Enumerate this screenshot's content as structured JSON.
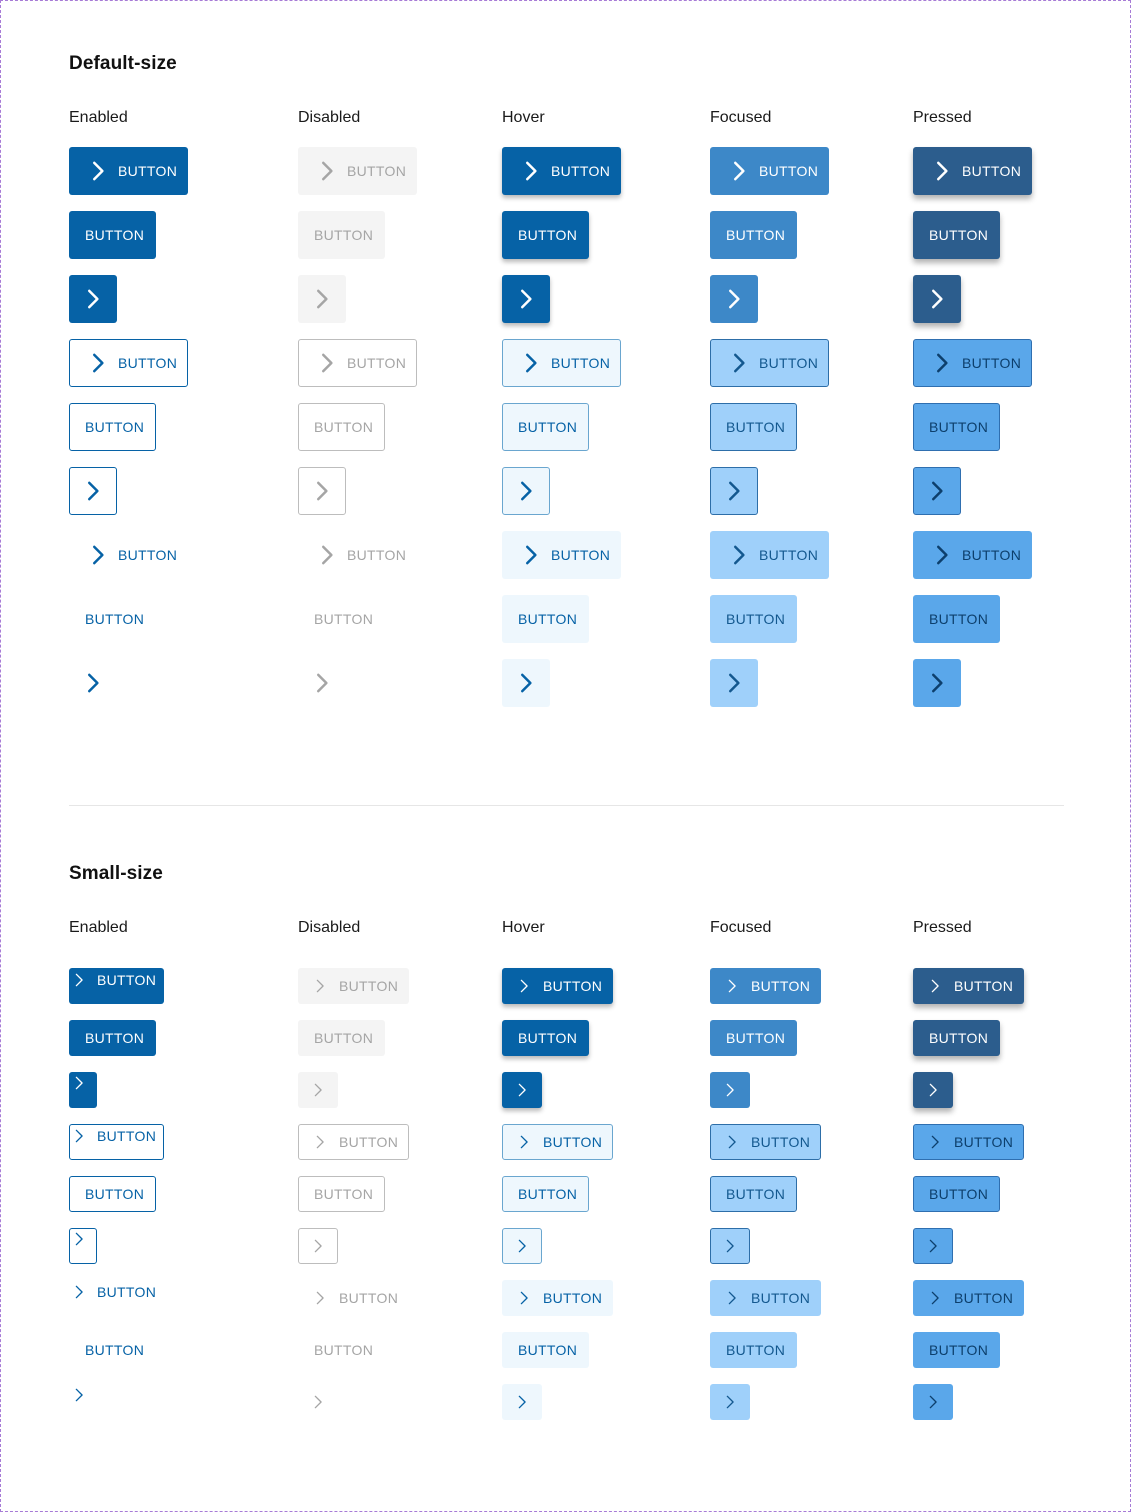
{
  "sections": [
    {
      "title": "Default-size",
      "columns": [
        "Enabled",
        "Disabled",
        "Hover",
        "Focused",
        "Pressed"
      ]
    },
    {
      "title": "Small-size",
      "columns": [
        "Enabled",
        "Disabled",
        "Hover",
        "Focused",
        "Pressed"
      ]
    }
  ],
  "button_label": "BUTTON",
  "icons": {
    "chevron": "chevron-right-icon"
  },
  "states": [
    "enabled",
    "disabled",
    "hover",
    "focused",
    "pressed"
  ],
  "variants": [
    {
      "style": "filled",
      "kind": "icon-label"
    },
    {
      "style": "filled",
      "kind": "label"
    },
    {
      "style": "filled",
      "kind": "icon"
    },
    {
      "style": "outlined",
      "kind": "icon-label"
    },
    {
      "style": "outlined",
      "kind": "label"
    },
    {
      "style": "outlined",
      "kind": "icon"
    },
    {
      "style": "ghost",
      "kind": "icon-label"
    },
    {
      "style": "ghost",
      "kind": "label"
    },
    {
      "style": "ghost",
      "kind": "icon"
    }
  ],
  "colors": {
    "primary": "#0662a6",
    "disabled_text": "#a5a5a5",
    "focused_fill": "#3d88c8",
    "pressed_fill": "#2c5d8d",
    "focused_light": "#9fd0fa",
    "pressed_light": "#5aa7ea",
    "hover_light": "#eef7fd"
  }
}
